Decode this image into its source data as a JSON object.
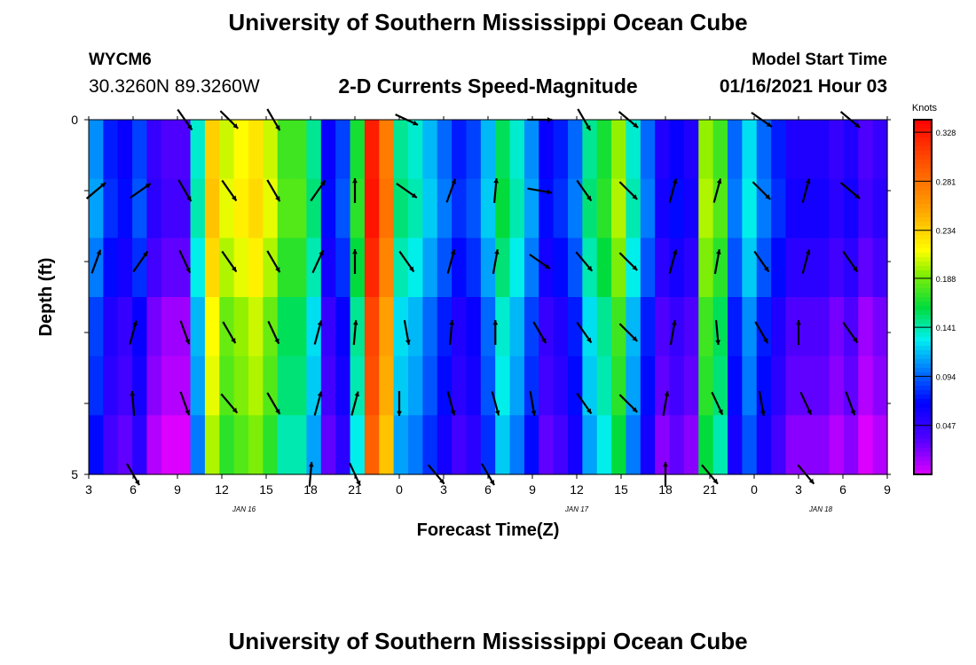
{
  "header": {
    "title": "University of Southern Mississippi Ocean Cube",
    "station_id": "WYCM6",
    "station_coords": "30.3260N 89.3260W",
    "plot_title": "2-D Currents Speed-Magnitude",
    "model_label": "Model Start Time",
    "model_time": "01/16/2021 Hour 03"
  },
  "footer": {
    "title": "University of Southern Mississippi Ocean Cube"
  },
  "chart_data": {
    "type": "heatmap",
    "xlabel": "Forecast Time(Z)",
    "ylabel": "Depth (ft)",
    "xlim": [
      3,
      57
    ],
    "ylim": [
      0,
      5
    ],
    "y_ticks": [
      "0",
      "5"
    ],
    "x_tick_labels": [
      "3",
      "6",
      "9",
      "12",
      "15",
      "18",
      "21",
      "0",
      "3",
      "6",
      "9",
      "12",
      "15",
      "18",
      "21",
      "0",
      "3",
      "6",
      "9"
    ],
    "day_labels": [
      {
        "label": "JAN 16",
        "x": 13.5
      },
      {
        "label": "JAN 17",
        "x": 36
      },
      {
        "label": "JAN 18",
        "x": 52.5
      }
    ],
    "colorbar": {
      "unit": "Knots",
      "tick_labels": [
        "0.328",
        "0.281",
        "0.234",
        "0.188",
        "0.141",
        "0.094",
        "0.047"
      ],
      "ticks": [
        0.328,
        0.281,
        0.234,
        0.188,
        0.141,
        0.094,
        0.047
      ],
      "range": [
        0.0,
        0.34
      ]
    },
    "speed_profile": [
      0.09,
      0.06,
      0.05,
      0.07,
      0.03,
      0.02,
      0.02,
      0.12,
      0.22,
      0.19,
      0.2,
      0.21,
      0.19,
      0.16,
      0.16,
      0.13,
      0.05,
      0.07,
      0.15,
      0.31,
      0.26,
      0.13,
      0.12,
      0.1,
      0.08,
      0.06,
      0.07,
      0.1,
      0.14,
      0.12,
      0.09,
      0.05,
      0.06,
      0.08,
      0.13,
      0.15,
      0.18,
      0.12,
      0.08,
      0.04,
      0.05,
      0.04,
      0.18,
      0.16,
      0.08,
      0.11,
      0.08,
      0.06,
      0.04,
      0.04,
      0.04,
      0.03,
      0.04,
      0.02,
      0.03
    ],
    "depth_variation": [
      0.015,
      0.02,
      0.01,
      -0.005,
      -0.01,
      -0.02
    ],
    "vectors": [
      {
        "x": 3.5,
        "depth": 1.0,
        "angle": -40,
        "speed": 0.09
      },
      {
        "x": 3.5,
        "depth": 2.0,
        "angle": -70,
        "speed": 0.09
      },
      {
        "x": 6.5,
        "depth": 1.0,
        "angle": -35,
        "speed": 0.05
      },
      {
        "x": 6.5,
        "depth": 2.0,
        "angle": -55,
        "speed": 0.05
      },
      {
        "x": 6.0,
        "depth": 3.0,
        "angle": -75,
        "speed": 0.04
      },
      {
        "x": 6.0,
        "depth": 4.0,
        "angle": -95,
        "speed": 0.04
      },
      {
        "x": 6.0,
        "depth": 5.0,
        "angle": 60,
        "speed": 0.04
      },
      {
        "x": 9.5,
        "depth": 0.0,
        "angle": 55,
        "speed": 0.2
      },
      {
        "x": 9.5,
        "depth": 1.0,
        "angle": 60,
        "speed": 0.2
      },
      {
        "x": 9.5,
        "depth": 2.0,
        "angle": 65,
        "speed": 0.2
      },
      {
        "x": 9.5,
        "depth": 3.0,
        "angle": 70,
        "speed": 0.2
      },
      {
        "x": 9.5,
        "depth": 4.0,
        "angle": 70,
        "speed": 0.2
      },
      {
        "x": 12.5,
        "depth": 0.0,
        "angle": 45,
        "speed": 0.21
      },
      {
        "x": 12.5,
        "depth": 1.0,
        "angle": 55,
        "speed": 0.21
      },
      {
        "x": 12.5,
        "depth": 2.0,
        "angle": 55,
        "speed": 0.21
      },
      {
        "x": 12.5,
        "depth": 3.0,
        "angle": 60,
        "speed": 0.21
      },
      {
        "x": 12.5,
        "depth": 4.0,
        "angle": 50,
        "speed": 0.21
      },
      {
        "x": 15.5,
        "depth": 0.0,
        "angle": 60,
        "speed": 0.17
      },
      {
        "x": 15.5,
        "depth": 1.0,
        "angle": 60,
        "speed": 0.17
      },
      {
        "x": 15.5,
        "depth": 2.0,
        "angle": 60,
        "speed": 0.17
      },
      {
        "x": 15.5,
        "depth": 3.0,
        "angle": 65,
        "speed": 0.17
      },
      {
        "x": 15.5,
        "depth": 4.0,
        "angle": 60,
        "speed": 0.17
      },
      {
        "x": 18.5,
        "depth": 1.0,
        "angle": -55,
        "speed": 0.12
      },
      {
        "x": 18.5,
        "depth": 2.0,
        "angle": -65,
        "speed": 0.12
      },
      {
        "x": 18.5,
        "depth": 3.0,
        "angle": -75,
        "speed": 0.12
      },
      {
        "x": 18.5,
        "depth": 4.0,
        "angle": -75,
        "speed": 0.12
      },
      {
        "x": 18.0,
        "depth": 5.0,
        "angle": -85,
        "speed": 0.12
      },
      {
        "x": 21.0,
        "depth": 1.0,
        "angle": -90,
        "speed": 0.26
      },
      {
        "x": 21.0,
        "depth": 2.0,
        "angle": -90,
        "speed": 0.26
      },
      {
        "x": 21.0,
        "depth": 3.0,
        "angle": -85,
        "speed": 0.26
      },
      {
        "x": 21.0,
        "depth": 4.0,
        "angle": -75,
        "speed": 0.26
      },
      {
        "x": 21.0,
        "depth": 5.0,
        "angle": 65,
        "speed": 0.26
      },
      {
        "x": 24.5,
        "depth": 0.0,
        "angle": 25,
        "speed": 0.1
      },
      {
        "x": 24.5,
        "depth": 1.0,
        "angle": 35,
        "speed": 0.1
      },
      {
        "x": 24.5,
        "depth": 2.0,
        "angle": 55,
        "speed": 0.1
      },
      {
        "x": 24.5,
        "depth": 3.0,
        "angle": 80,
        "speed": 0.1
      },
      {
        "x": 24.0,
        "depth": 4.0,
        "angle": 90,
        "speed": 0.1
      },
      {
        "x": 26.5,
        "depth": 5.0,
        "angle": 50,
        "speed": 0.08
      },
      {
        "x": 27.5,
        "depth": 1.0,
        "angle": -70,
        "speed": 0.09
      },
      {
        "x": 27.5,
        "depth": 2.0,
        "angle": -75,
        "speed": 0.09
      },
      {
        "x": 27.5,
        "depth": 3.0,
        "angle": -85,
        "speed": 0.09
      },
      {
        "x": 27.5,
        "depth": 4.0,
        "angle": 75,
        "speed": 0.09
      },
      {
        "x": 30.5,
        "depth": 1.0,
        "angle": -85,
        "speed": 0.1
      },
      {
        "x": 30.5,
        "depth": 2.0,
        "angle": -80,
        "speed": 0.1
      },
      {
        "x": 30.5,
        "depth": 3.0,
        "angle": -90,
        "speed": 0.1
      },
      {
        "x": 30.5,
        "depth": 4.0,
        "angle": 75,
        "speed": 0.1
      },
      {
        "x": 30.0,
        "depth": 5.0,
        "angle": 60,
        "speed": 0.1
      },
      {
        "x": 33.5,
        "depth": 0.0,
        "angle": 0,
        "speed": 0.12
      },
      {
        "x": 33.5,
        "depth": 1.0,
        "angle": 10,
        "speed": 0.12
      },
      {
        "x": 33.5,
        "depth": 2.0,
        "angle": 35,
        "speed": 0.12
      },
      {
        "x": 33.5,
        "depth": 3.0,
        "angle": 60,
        "speed": 0.12
      },
      {
        "x": 33.0,
        "depth": 4.0,
        "angle": 80,
        "speed": 0.12
      },
      {
        "x": 36.5,
        "depth": 0.0,
        "angle": 60,
        "speed": 0.15
      },
      {
        "x": 36.5,
        "depth": 1.0,
        "angle": 55,
        "speed": 0.15
      },
      {
        "x": 36.5,
        "depth": 2.0,
        "angle": 50,
        "speed": 0.15
      },
      {
        "x": 36.5,
        "depth": 3.0,
        "angle": 55,
        "speed": 0.15
      },
      {
        "x": 36.5,
        "depth": 4.0,
        "angle": 55,
        "speed": 0.15
      },
      {
        "x": 39.5,
        "depth": 0.0,
        "angle": 40,
        "speed": 0.1
      },
      {
        "x": 39.5,
        "depth": 1.0,
        "angle": 45,
        "speed": 0.1
      },
      {
        "x": 39.5,
        "depth": 2.0,
        "angle": 45,
        "speed": 0.1
      },
      {
        "x": 39.5,
        "depth": 3.0,
        "angle": 45,
        "speed": 0.1
      },
      {
        "x": 39.5,
        "depth": 4.0,
        "angle": 45,
        "speed": 0.1
      },
      {
        "x": 42.5,
        "depth": 1.0,
        "angle": -75,
        "speed": 0.16
      },
      {
        "x": 42.5,
        "depth": 2.0,
        "angle": -75,
        "speed": 0.16
      },
      {
        "x": 42.5,
        "depth": 3.0,
        "angle": -80,
        "speed": 0.16
      },
      {
        "x": 42.0,
        "depth": 4.0,
        "angle": -80,
        "speed": 0.16
      },
      {
        "x": 42.0,
        "depth": 5.0,
        "angle": -90,
        "speed": 0.16
      },
      {
        "x": 45.5,
        "depth": 1.0,
        "angle": -75,
        "speed": 0.09
      },
      {
        "x": 45.5,
        "depth": 2.0,
        "angle": -80,
        "speed": 0.09
      },
      {
        "x": 45.5,
        "depth": 3.0,
        "angle": 85,
        "speed": 0.09
      },
      {
        "x": 45.5,
        "depth": 4.0,
        "angle": 65,
        "speed": 0.09
      },
      {
        "x": 45.0,
        "depth": 5.0,
        "angle": 50,
        "speed": 0.09
      },
      {
        "x": 48.5,
        "depth": 0.0,
        "angle": 35,
        "speed": 0.04
      },
      {
        "x": 48.5,
        "depth": 1.0,
        "angle": 45,
        "speed": 0.04
      },
      {
        "x": 48.5,
        "depth": 2.0,
        "angle": 55,
        "speed": 0.04
      },
      {
        "x": 48.5,
        "depth": 3.0,
        "angle": 60,
        "speed": 0.04
      },
      {
        "x": 48.5,
        "depth": 4.0,
        "angle": 80,
        "speed": 0.04
      },
      {
        "x": 51.5,
        "depth": 1.0,
        "angle": -75,
        "speed": 0.04
      },
      {
        "x": 51.5,
        "depth": 2.0,
        "angle": -75,
        "speed": 0.04
      },
      {
        "x": 51.0,
        "depth": 3.0,
        "angle": -90,
        "speed": 0.04
      },
      {
        "x": 51.5,
        "depth": 4.0,
        "angle": 65,
        "speed": 0.04
      },
      {
        "x": 51.5,
        "depth": 5.0,
        "angle": 50,
        "speed": 0.04
      },
      {
        "x": 54.5,
        "depth": 0.0,
        "angle": 40,
        "speed": 0.03
      },
      {
        "x": 54.5,
        "depth": 1.0,
        "angle": 40,
        "speed": 0.03
      },
      {
        "x": 54.5,
        "depth": 2.0,
        "angle": 55,
        "speed": 0.03
      },
      {
        "x": 54.5,
        "depth": 3.0,
        "angle": 55,
        "speed": 0.03
      },
      {
        "x": 54.5,
        "depth": 4.0,
        "angle": 70,
        "speed": 0.03
      }
    ]
  }
}
